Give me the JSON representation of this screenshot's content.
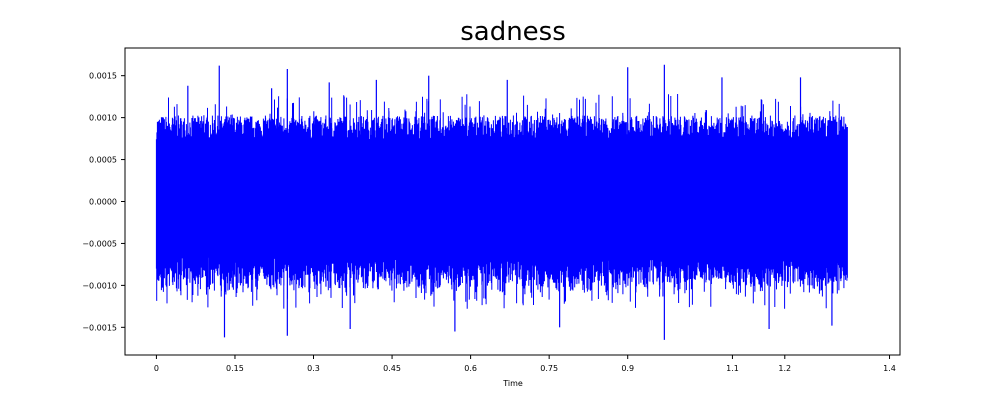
{
  "chart_data": {
    "type": "line",
    "title": "sadness",
    "xlabel": "Time",
    "ylabel": "",
    "xlim": [
      -0.06,
      1.42
    ],
    "ylim": [
      -0.00183,
      0.00183
    ],
    "x_ticks": [
      0,
      0.15,
      0.3,
      0.45,
      0.6,
      0.75,
      0.9,
      1.1,
      1.2,
      1.4
    ],
    "x_tick_labels": [
      "0",
      "0.15",
      "0.3",
      "0.45",
      "0.6",
      "0.75",
      "0.9",
      "1.1",
      "1.2",
      "1.4"
    ],
    "y_ticks": [
      -0.0015,
      -0.001,
      -0.0005,
      0,
      0.0005,
      0.001,
      0.0015
    ],
    "y_tick_labels": [
      "−0.0015",
      "−0.0010",
      "−0.0005",
      "0.0000",
      "0.0005",
      "0.0010",
      "0.0015"
    ],
    "grid": false,
    "series": [
      {
        "color": "#0000ff",
        "x_range": [
          0,
          1.32
        ],
        "typical_amplitude": 0.00095,
        "peaks": [
          {
            "x": 0.06,
            "y": 0.00138
          },
          {
            "x": 0.12,
            "y": 0.00162
          },
          {
            "x": 0.13,
            "y": -0.00162
          },
          {
            "x": 0.22,
            "y": 0.00135
          },
          {
            "x": 0.25,
            "y": 0.00158
          },
          {
            "x": 0.25,
            "y": -0.0016
          },
          {
            "x": 0.33,
            "y": 0.00142
          },
          {
            "x": 0.37,
            "y": -0.00152
          },
          {
            "x": 0.42,
            "y": 0.00145
          },
          {
            "x": 0.52,
            "y": 0.0015
          },
          {
            "x": 0.57,
            "y": -0.00155
          },
          {
            "x": 0.67,
            "y": 0.00145
          },
          {
            "x": 0.77,
            "y": -0.0015
          },
          {
            "x": 0.9,
            "y": 0.0016
          },
          {
            "x": 0.97,
            "y": 0.00163
          },
          {
            "x": 0.97,
            "y": -0.00165
          },
          {
            "x": 1.08,
            "y": 0.00148
          },
          {
            "x": 1.17,
            "y": -0.00152
          },
          {
            "x": 1.23,
            "y": 0.00148
          },
          {
            "x": 1.29,
            "y": -0.00148
          }
        ]
      }
    ]
  }
}
